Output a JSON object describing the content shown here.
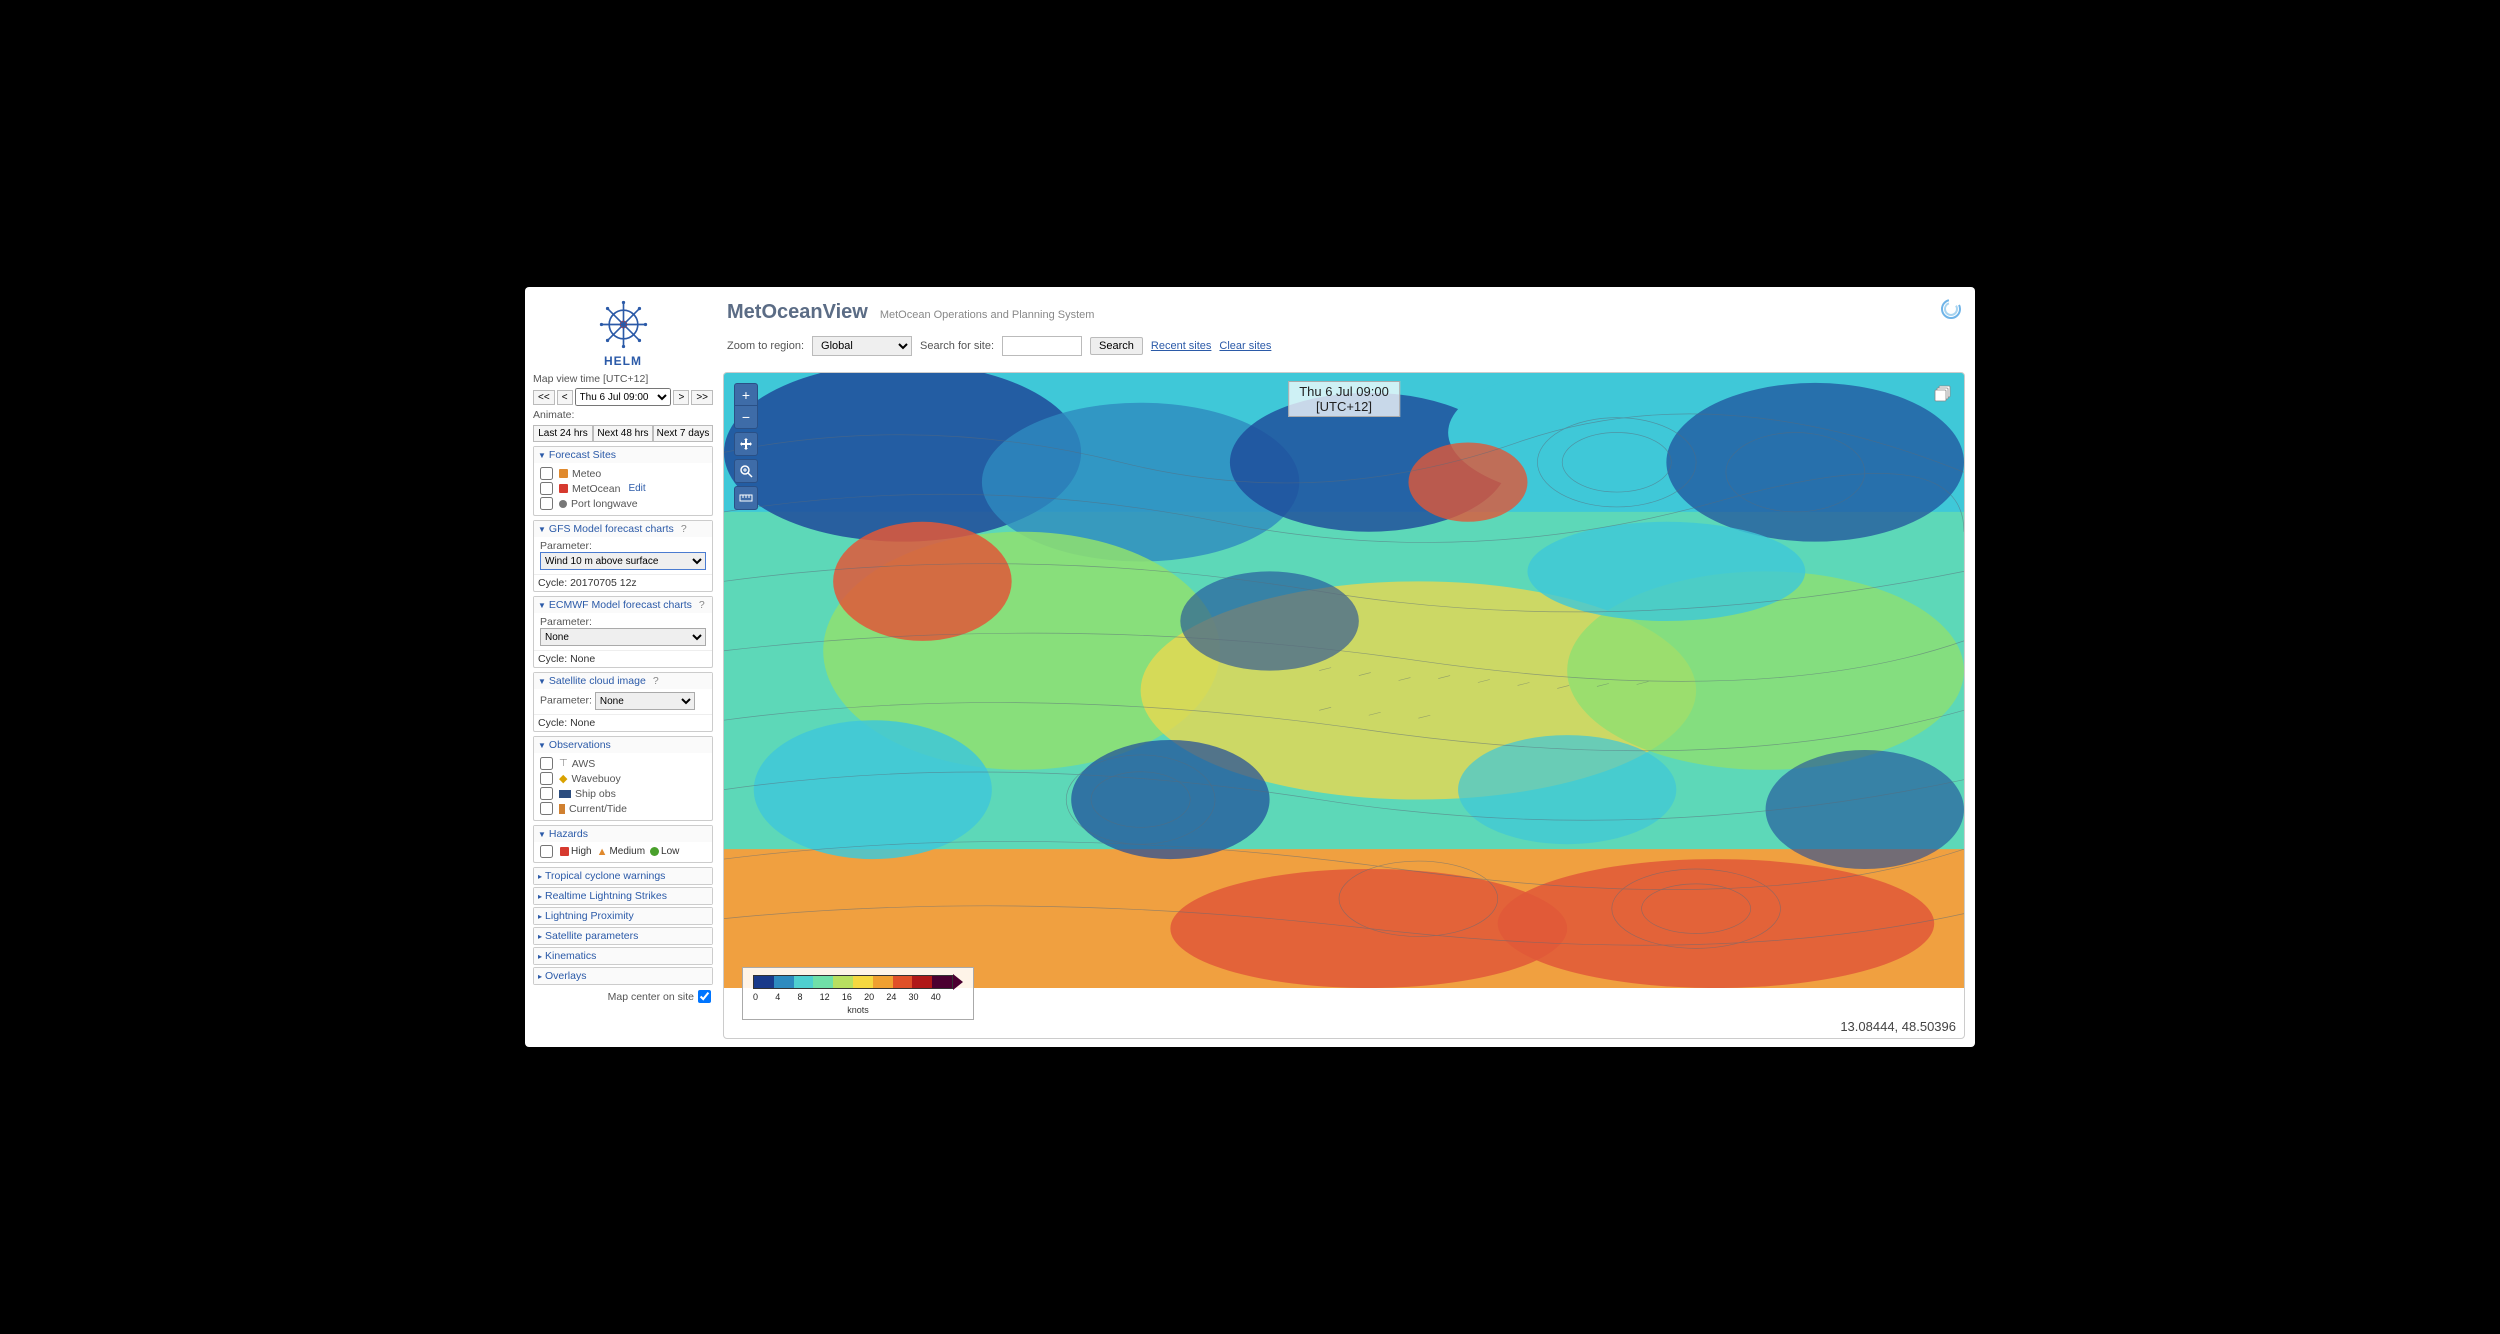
{
  "brand": {
    "name": "HELM",
    "app_title": "MetOceanView",
    "subtitle": "MetOcean Operations and Planning System"
  },
  "toolbar": {
    "zoom_label": "Zoom to region:",
    "region_value": "Global",
    "search_label": "Search for site:",
    "search_btn": "Search",
    "recent_link": "Recent sites",
    "clear_link": "Clear sites"
  },
  "sidebar": {
    "time_label": "Map view time [UTC+12]",
    "nav_first": "<<",
    "nav_prev": "<",
    "time_value": "Thu 6 Jul 09:00",
    "nav_next": ">",
    "nav_last": ">>",
    "animate_label": "Animate:",
    "animate_btns": [
      "Last 24 hrs",
      "Next 48 hrs",
      "Next 7 days"
    ],
    "forecast_sites": {
      "title": "Forecast Sites",
      "items": [
        {
          "label": "Meteo",
          "color": "#e08a2e"
        },
        {
          "label": "MetOcean",
          "color": "#d63a2f",
          "edit": "Edit"
        },
        {
          "label": "Port longwave",
          "color": "#777"
        }
      ]
    },
    "gfs": {
      "title": "GFS Model forecast charts",
      "param_label": "Parameter:",
      "param_value": "Wind 10 m above surface",
      "cycle_label": "Cycle: 20170705 12z"
    },
    "ecmwf": {
      "title": "ECMWF Model forecast charts",
      "param_label": "Parameter:",
      "param_value": "None",
      "cycle_label": "Cycle: None"
    },
    "sat": {
      "title": "Satellite cloud image",
      "param_label": "Parameter:",
      "param_value": "None",
      "cycle_label": "Cycle: None"
    },
    "obs": {
      "title": "Observations",
      "items": [
        "AWS",
        "Wavebuoy",
        "Ship obs",
        "Current/Tide"
      ]
    },
    "hazards": {
      "title": "Hazards",
      "items": [
        {
          "label": "High",
          "color": "#d63a2f"
        },
        {
          "label": "Medium",
          "color": "#e08a2e"
        },
        {
          "label": "Low",
          "color": "#4aa02c"
        }
      ]
    },
    "collapsed": [
      "Tropical cyclone warnings",
      "Realtime Lightning Strikes",
      "Lightning Proximity",
      "Satellite parameters",
      "Kinematics",
      "Overlays"
    ],
    "footer_label": "Map center on site"
  },
  "map": {
    "time_overlay_line1": "Thu 6 Jul 09:00",
    "time_overlay_line2": "[UTC+12]",
    "coords": "13.08444, 48.50396",
    "colorbar": {
      "colors": [
        "#1a3a8a",
        "#2e8bbf",
        "#4fd0d0",
        "#6fe0a8",
        "#b8e060",
        "#f5d840",
        "#f0a030",
        "#e05028",
        "#b01818",
        "#4b0030"
      ],
      "ticks": [
        "0",
        "4",
        "8",
        "12",
        "16",
        "20",
        "24",
        "30",
        "40"
      ],
      "unit": "knots"
    },
    "bg_colors": {
      "deep_blue": "#1e4a9a",
      "cyan": "#3fc8d8",
      "teal": "#5dd8b8",
      "green": "#8fe070",
      "yellow": "#e8d850",
      "orange": "#f0a040",
      "red": "#e05838",
      "dark_red": "#a82828"
    }
  }
}
